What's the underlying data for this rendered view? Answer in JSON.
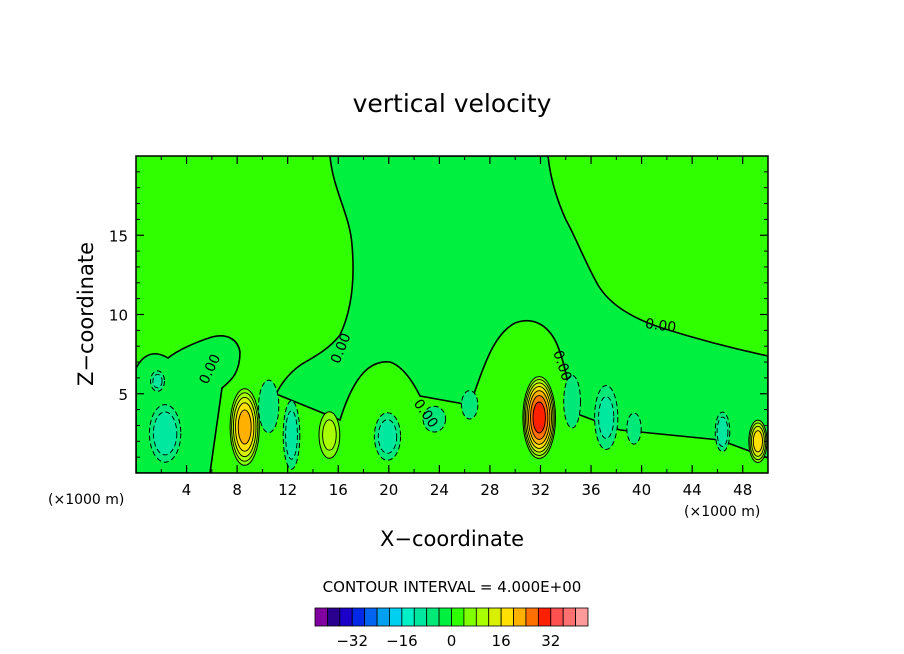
{
  "chart_data": {
    "type": "heatmap",
    "title": "vertical velocity",
    "xlabel": "X−coordinate",
    "ylabel": "Z−coordinate",
    "x_unit_left": "(×1000 m)",
    "x_unit_right": "(×1000 m)",
    "xlim": [
      0,
      50
    ],
    "ylim": [
      0,
      20
    ],
    "x_ticks": [
      4,
      8,
      12,
      16,
      20,
      24,
      28,
      32,
      36,
      40,
      44,
      48
    ],
    "x_tick_labels": [
      "4",
      "8",
      "12",
      "16",
      "20",
      "24",
      "28",
      "32",
      "36",
      "40",
      "44",
      "48"
    ],
    "y_ticks": [
      5,
      10,
      15
    ],
    "y_tick_labels": [
      "5",
      "10",
      "15"
    ],
    "contour_interval_text": "CONTOUR INTERVAL =  4.000E+00",
    "contour_line_label": "0.00",
    "colorbar": {
      "tick_values": [
        -32,
        -16,
        0,
        16,
        32
      ],
      "tick_labels": [
        "−32",
        "−16",
        "0",
        "16",
        "32"
      ],
      "levels": [
        -40,
        -36,
        -32,
        -28,
        -24,
        -20,
        -16,
        -12,
        -8,
        -4,
        0,
        4,
        8,
        12,
        16,
        20,
        24,
        28,
        32,
        36,
        40
      ],
      "colors": [
        "#8000a0",
        "#2a008f",
        "#1a00c8",
        "#0028e6",
        "#0064f0",
        "#00a0f0",
        "#00d0f0",
        "#00f0c8",
        "#00e8a0",
        "#00e878",
        "#00f040",
        "#30ff00",
        "#80ff00",
        "#a8ff00",
        "#d8f000",
        "#ffe000",
        "#ffb000",
        "#ff7000",
        "#ff2000",
        "#ff5050",
        "#ff7070",
        "#ff9a9a"
      ]
    },
    "blobs": [
      {
        "x": 2.3,
        "z": 2.5,
        "sx": 1.3,
        "sz": 1.9,
        "a": -11
      },
      {
        "x": 1.7,
        "z": 5.8,
        "sx": 0.6,
        "sz": 0.7,
        "a": -9
      },
      {
        "x": 8.6,
        "z": 2.9,
        "sx": 1.1,
        "sz": 2.3,
        "a": 22
      },
      {
        "x": 12.3,
        "z": 2.4,
        "sx": 0.7,
        "sz": 2.3,
        "a": -10
      },
      {
        "x": 15.3,
        "z": 2.4,
        "sx": 0.9,
        "sz": 1.6,
        "a": 9
      },
      {
        "x": 19.9,
        "z": 2.3,
        "sx": 1.1,
        "sz": 1.6,
        "a": -10
      },
      {
        "x": 23.6,
        "z": 3.4,
        "sx": 1.1,
        "sz": 1.0,
        "a": -6
      },
      {
        "x": 26.4,
        "z": 4.3,
        "sx": 0.8,
        "sz": 1.1,
        "a": -6
      },
      {
        "x": 31.9,
        "z": 3.5,
        "sx": 1.2,
        "sz": 2.4,
        "a": 30
      },
      {
        "x": 37.2,
        "z": 3.5,
        "sx": 1.0,
        "sz": 2.2,
        "a": -9
      },
      {
        "x": 39.4,
        "z": 2.8,
        "sx": 0.7,
        "sz": 1.2,
        "a": -6
      },
      {
        "x": 46.4,
        "z": 2.6,
        "sx": 0.6,
        "sz": 1.3,
        "a": -11
      },
      {
        "x": 49.2,
        "z": 2.0,
        "sx": 0.7,
        "sz": 1.3,
        "a": 18
      },
      {
        "x": 10.5,
        "z": 4.2,
        "sx": 1.2,
        "sz": 2.5,
        "a": -4
      },
      {
        "x": 34.5,
        "z": 4.5,
        "sx": 1.0,
        "sz": 2.5,
        "a": -4
      },
      {
        "x": 17.5,
        "z": 3.5,
        "sx": 0.8,
        "sz": 2.0,
        "a": -3
      }
    ]
  }
}
